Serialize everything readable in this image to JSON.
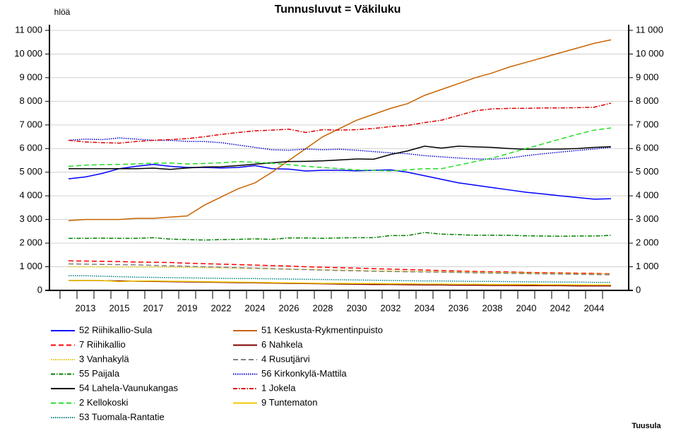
{
  "chart_data": {
    "type": "line",
    "title": "Tunnusluvut = Väkiluku",
    "y_label": "hlöä",
    "footer": "Tuusula",
    "categories": [
      null,
      "2013",
      null,
      "2015",
      null,
      "2017",
      null,
      "2019",
      null,
      "2022",
      null,
      "2024",
      null,
      "2026",
      null,
      "2028",
      null,
      "2030",
      null,
      "2032",
      null,
      "2034",
      null,
      "2036",
      null,
      "2038",
      null,
      "2040",
      null,
      "2042",
      null,
      "2044",
      null
    ],
    "ylim": [
      0,
      11000
    ],
    "yticks": [
      0,
      {
        "value": 1000,
        "label": "1 000"
      },
      {
        "value": 2000,
        "label": "2 000"
      },
      {
        "value": 3000,
        "label": "3 000"
      },
      {
        "value": 4000,
        "label": "4 000"
      },
      {
        "value": 5000,
        "label": "5 000"
      },
      {
        "value": 6000,
        "label": "6 000"
      },
      {
        "value": 7000,
        "label": "7 000"
      },
      {
        "value": 8000,
        "label": "8 000"
      },
      {
        "value": 9000,
        "label": "9 000"
      },
      {
        "value": 10000,
        "label": "10 000"
      },
      {
        "value": 11000,
        "label": "11 000"
      }
    ],
    "grid": true,
    "series": [
      {
        "name": "52 Riihikallio-Sula",
        "color": "#0000ff",
        "dash": "solid",
        "values": [
          4720,
          4800,
          4950,
          5150,
          5250,
          5330,
          5250,
          5200,
          5200,
          5180,
          5200,
          5280,
          5150,
          5130,
          5050,
          5080,
          5080,
          5060,
          5080,
          5100,
          5000,
          4850,
          4700,
          4550,
          4450,
          4350,
          4250,
          4150,
          4080,
          4000,
          3930,
          3860,
          3880
        ]
      },
      {
        "name": "51 Keskusta-Rykmentinpuisto",
        "color": "#c86400",
        "dash": "solid",
        "values": [
          2950,
          3000,
          3000,
          3000,
          3050,
          3050,
          3100,
          3150,
          3600,
          3950,
          4300,
          4550,
          5000,
          5500,
          6000,
          6500,
          6850,
          7200,
          7450,
          7700,
          7900,
          8250,
          8500,
          8750,
          9000,
          9200,
          9450,
          9650,
          9850,
          10050,
          10250,
          10450,
          10600
        ]
      },
      {
        "name": "7 Riihikallio",
        "color": "#ff0000",
        "dash": "dashed",
        "values": [
          1250,
          1240,
          1230,
          1220,
          1200,
          1190,
          1180,
          1150,
          1130,
          1110,
          1090,
          1070,
          1050,
          1030,
          1000,
          980,
          960,
          940,
          920,
          900,
          880,
          860,
          840,
          820,
          800,
          790,
          780,
          760,
          750,
          740,
          730,
          720,
          700
        ]
      },
      {
        "name": "6 Nahkela",
        "color": "#800000",
        "dash": "solid",
        "values": [
          420,
          420,
          410,
          400,
          390,
          380,
          370,
          360,
          350,
          340,
          330,
          320,
          310,
          300,
          290,
          280,
          270,
          260,
          250,
          250,
          240,
          230,
          230,
          220,
          220,
          210,
          210,
          200,
          200,
          200,
          190,
          190,
          190
        ]
      },
      {
        "name": "3 Vanhakylä",
        "color": "#e6c800",
        "dash": "dotted",
        "values": [
          1000,
          1000,
          990,
          990,
          990,
          990,
          980,
          970,
          960,
          950,
          940,
          930,
          910,
          900,
          890,
          870,
          860,
          850,
          830,
          820,
          810,
          800,
          790,
          780,
          770,
          760,
          750,
          740,
          730,
          720,
          710,
          700,
          690
        ]
      },
      {
        "name": "4 Rusutjärvi",
        "color": "#808080",
        "dash": "dashed",
        "values": [
          1120,
          1110,
          1100,
          1090,
          1080,
          1060,
          1040,
          1020,
          1000,
          980,
          960,
          940,
          920,
          900,
          880,
          860,
          840,
          830,
          810,
          800,
          790,
          780,
          770,
          760,
          740,
          730,
          720,
          710,
          700,
          690,
          680,
          670,
          660
        ]
      },
      {
        "name": "55 Paijala",
        "color": "#008000",
        "dash": "dashdot",
        "values": [
          2200,
          2200,
          2210,
          2200,
          2200,
          2230,
          2170,
          2150,
          2130,
          2150,
          2160,
          2180,
          2160,
          2220,
          2220,
          2200,
          2220,
          2230,
          2230,
          2320,
          2320,
          2450,
          2380,
          2360,
          2330,
          2330,
          2330,
          2310,
          2300,
          2290,
          2300,
          2300,
          2330
        ]
      },
      {
        "name": "56 Kirkonkylä-Mattila",
        "color": "#0000cc",
        "dash": "dotted",
        "values": [
          6350,
          6400,
          6380,
          6450,
          6400,
          6350,
          6350,
          6300,
          6300,
          6250,
          6150,
          6050,
          5950,
          5930,
          5980,
          5950,
          5970,
          5930,
          5870,
          5820,
          5780,
          5700,
          5650,
          5600,
          5560,
          5550,
          5600,
          5700,
          5780,
          5850,
          5920,
          5980,
          6050
        ]
      },
      {
        "name": "54 Lahela-Vaunukangas",
        "color": "#000000",
        "dash": "solid",
        "values": [
          5150,
          5150,
          5150,
          5150,
          5150,
          5170,
          5120,
          5180,
          5220,
          5230,
          5280,
          5340,
          5400,
          5450,
          5460,
          5480,
          5520,
          5560,
          5550,
          5750,
          5900,
          6100,
          6020,
          6100,
          6070,
          6050,
          6000,
          5970,
          5980,
          5980,
          6000,
          6050,
          6080
        ]
      },
      {
        "name": "1 Jokela",
        "color": "#e00000",
        "dash": "dashdot",
        "values": [
          6350,
          6280,
          6250,
          6230,
          6300,
          6350,
          6380,
          6420,
          6500,
          6600,
          6680,
          6750,
          6780,
          6820,
          6680,
          6800,
          6780,
          6800,
          6850,
          6930,
          6980,
          7100,
          7200,
          7400,
          7600,
          7680,
          7700,
          7700,
          7720,
          7720,
          7730,
          7750,
          7920
        ]
      },
      {
        "name": "2 Kellokoski",
        "color": "#22dd22",
        "dash": "dashed",
        "values": [
          5250,
          5300,
          5320,
          5330,
          5350,
          5380,
          5390,
          5350,
          5370,
          5400,
          5450,
          5420,
          5380,
          5320,
          5250,
          5200,
          5150,
          5100,
          5080,
          5050,
          5100,
          5150,
          5150,
          5300,
          5450,
          5600,
          5800,
          6000,
          6200,
          6400,
          6600,
          6780,
          6870
        ]
      },
      {
        "name": "9 Tuntematon",
        "color": "#f0c800",
        "dash": "solid",
        "values": [
          420,
          420,
          420,
          370,
          400,
          400,
          390,
          380,
          370,
          360,
          350,
          340,
          330,
          320,
          310,
          300,
          300,
          290,
          290,
          280,
          280,
          270,
          270,
          260,
          260,
          250,
          250,
          250,
          240,
          240,
          240,
          230,
          230
        ]
      },
      {
        "name": "53 Tuomala-Rantatie",
        "color": "#008080",
        "dash": "dotted",
        "values": [
          620,
          620,
          600,
          580,
          560,
          550,
          540,
          530,
          520,
          510,
          500,
          500,
          490,
          480,
          470,
          460,
          450,
          440,
          430,
          420,
          410,
          400,
          400,
          390,
          380,
          380,
          370,
          360,
          360,
          350,
          350,
          340,
          340
        ]
      }
    ]
  }
}
